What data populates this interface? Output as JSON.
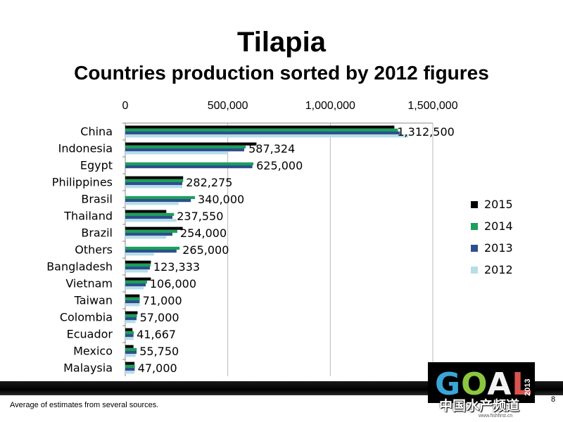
{
  "title": "Tilapia",
  "subtitle": "Countries production sorted by 2012 figures",
  "footnote": "Average of estimates from several sources.",
  "page_number": "8",
  "logo": {
    "text": "GOAL",
    "year": "2013"
  },
  "watermark": {
    "text": "中国水产频道",
    "sub": "www.fishfirst.cn"
  },
  "colors": {
    "2015": "#000000",
    "2014": "#1ba05a",
    "2013": "#2e4f8e",
    "2012": "#b7dde8"
  },
  "chart_data": {
    "type": "bar",
    "orientation": "horizontal",
    "x_axis_position": "top",
    "xlim": [
      0,
      1500000
    ],
    "x_ticks": [
      "0",
      "500,000",
      "1,000,000",
      "1,500,000"
    ],
    "grid": true,
    "legend_position": "right",
    "categories": [
      "China",
      "Indonesia",
      "Egypt",
      "Philippines",
      "Brasil",
      "Thailand",
      "Brazil",
      "Others",
      "Bangladesh",
      "Vietnam",
      "Taiwan",
      "Colombia",
      "Ecuador",
      "Mexico",
      "Malaysia"
    ],
    "series": [
      {
        "name": "2015",
        "values": [
          1312500,
          640000,
          null,
          282275,
          null,
          200000,
          280000,
          null,
          125000,
          125000,
          70000,
          60000,
          35000,
          40000,
          45000
        ]
      },
      {
        "name": "2014",
        "values": [
          1330000,
          587324,
          625000,
          282275,
          340000,
          237550,
          254000,
          265000,
          123333,
          106000,
          71000,
          57000,
          41667,
          55750,
          47000
        ]
      },
      {
        "name": "2013",
        "values": [
          1340000,
          580000,
          620000,
          278000,
          320000,
          230000,
          230000,
          250000,
          120000,
          100000,
          70000,
          55000,
          40000,
          55000,
          46000
        ]
      },
      {
        "name": "2012",
        "values": [
          1380000,
          500000,
          null,
          278000,
          260000,
          250000,
          200000,
          140000,
          110000,
          90000,
          70000,
          50000,
          40000,
          50000,
          45000
        ]
      }
    ],
    "data_labels": [
      "1,312,500",
      "587,324",
      "625,000",
      "282,275",
      "340,000",
      "237,550",
      "254,000",
      "265,000",
      "123,333",
      "106,000",
      "71,000",
      "57,000",
      "41,667",
      "55,750",
      "47,000"
    ],
    "label_values": [
      1312500,
      587324,
      625000,
      282275,
      340000,
      237550,
      254000,
      265000,
      123333,
      106000,
      71000,
      57000,
      41667,
      55750,
      47000
    ]
  }
}
